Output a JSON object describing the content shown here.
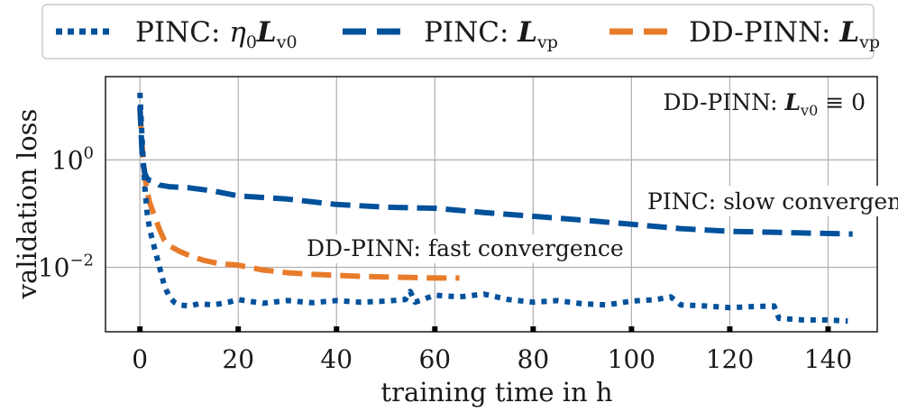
{
  "chart_data": {
    "type": "line",
    "xlabel": "training time in h",
    "ylabel": "validation loss",
    "xlim": [
      -7,
      150
    ],
    "ylim_log10": [
      -3.2,
      1.55
    ],
    "yscale": "log",
    "grid": true,
    "legend_position": "top-outside",
    "x_ticks": [
      0,
      20,
      40,
      60,
      80,
      100,
      120,
      140
    ],
    "y_ticks": [
      {
        "value_log10": 0,
        "base": "10",
        "exp": "0"
      },
      {
        "value_log10": -2,
        "base": "10",
        "exp": "−2"
      }
    ],
    "series": [
      {
        "name": "PINC: η0 Lv0",
        "legend_prefix": "PINC: ",
        "legend_math": "η",
        "legend_math_sub": "0",
        "legend_math2": "L",
        "legend_math2_sub": "v0",
        "color": "#00519b",
        "style": "dotted",
        "x": [
          0,
          0.5,
          1,
          1.5,
          2,
          3,
          4,
          5,
          6,
          7,
          8,
          10,
          12,
          15,
          18,
          20,
          25,
          30,
          35,
          40,
          45,
          50,
          54,
          55,
          56,
          60,
          65,
          70,
          75,
          80,
          85,
          90,
          95,
          100,
          105,
          108,
          110,
          115,
          120,
          125,
          129,
          130,
          135,
          140,
          144
        ],
        "y_log10": [
          1.25,
          0.3,
          -0.5,
          -1.0,
          -1.3,
          -1.65,
          -2.0,
          -2.35,
          -2.55,
          -2.65,
          -2.7,
          -2.72,
          -2.68,
          -2.7,
          -2.65,
          -2.6,
          -2.67,
          -2.62,
          -2.66,
          -2.62,
          -2.65,
          -2.63,
          -2.6,
          -2.45,
          -2.65,
          -2.52,
          -2.55,
          -2.5,
          -2.6,
          -2.65,
          -2.62,
          -2.68,
          -2.7,
          -2.63,
          -2.6,
          -2.55,
          -2.7,
          -2.72,
          -2.75,
          -2.73,
          -2.72,
          -2.95,
          -2.98,
          -2.98,
          -3.0
        ]
      },
      {
        "name": "PINC: Lvp",
        "legend_prefix": "PINC: ",
        "legend_math": "L",
        "legend_math_sub": "vp",
        "color": "#00519b",
        "style": "dashed",
        "x": [
          0,
          0.5,
          1,
          1.5,
          2,
          3,
          4,
          6,
          10,
          15,
          20,
          30,
          40,
          50,
          60,
          70,
          80,
          90,
          100,
          110,
          120,
          130,
          145
        ],
        "y_log10": [
          1.0,
          0.0,
          -0.25,
          -0.35,
          -0.38,
          -0.4,
          -0.47,
          -0.5,
          -0.52,
          -0.58,
          -0.67,
          -0.73,
          -0.83,
          -0.88,
          -0.9,
          -0.98,
          -1.05,
          -1.12,
          -1.2,
          -1.28,
          -1.33,
          -1.35,
          -1.38
        ]
      },
      {
        "name": "DD-PINN: Lvp",
        "legend_prefix": "DD-PINN: ",
        "legend_math": "L",
        "legend_math_sub": "vp",
        "color": "#e87b2a",
        "style": "dashed",
        "x": [
          0,
          0.5,
          1,
          1.5,
          2,
          3,
          4,
          5,
          6,
          8,
          10,
          13,
          16,
          20,
          25,
          30,
          35,
          40,
          45,
          50,
          55,
          60,
          65
        ],
        "y_log10": [
          0.95,
          0.2,
          -0.3,
          -0.6,
          -0.8,
          -1.05,
          -1.3,
          -1.5,
          -1.6,
          -1.7,
          -1.78,
          -1.87,
          -1.93,
          -1.96,
          -2.05,
          -2.1,
          -2.13,
          -2.15,
          -2.17,
          -2.18,
          -2.19,
          -2.2,
          -2.2
        ]
      }
    ],
    "annotations": {
      "top_right_prefix": "DD-PINN: ",
      "top_right_math": "L",
      "top_right_sub": "v0",
      "top_right_suffix": " ≡ 0",
      "slow": "PINC: slow convergence",
      "fast": "DD-PINN: fast convergence"
    }
  }
}
